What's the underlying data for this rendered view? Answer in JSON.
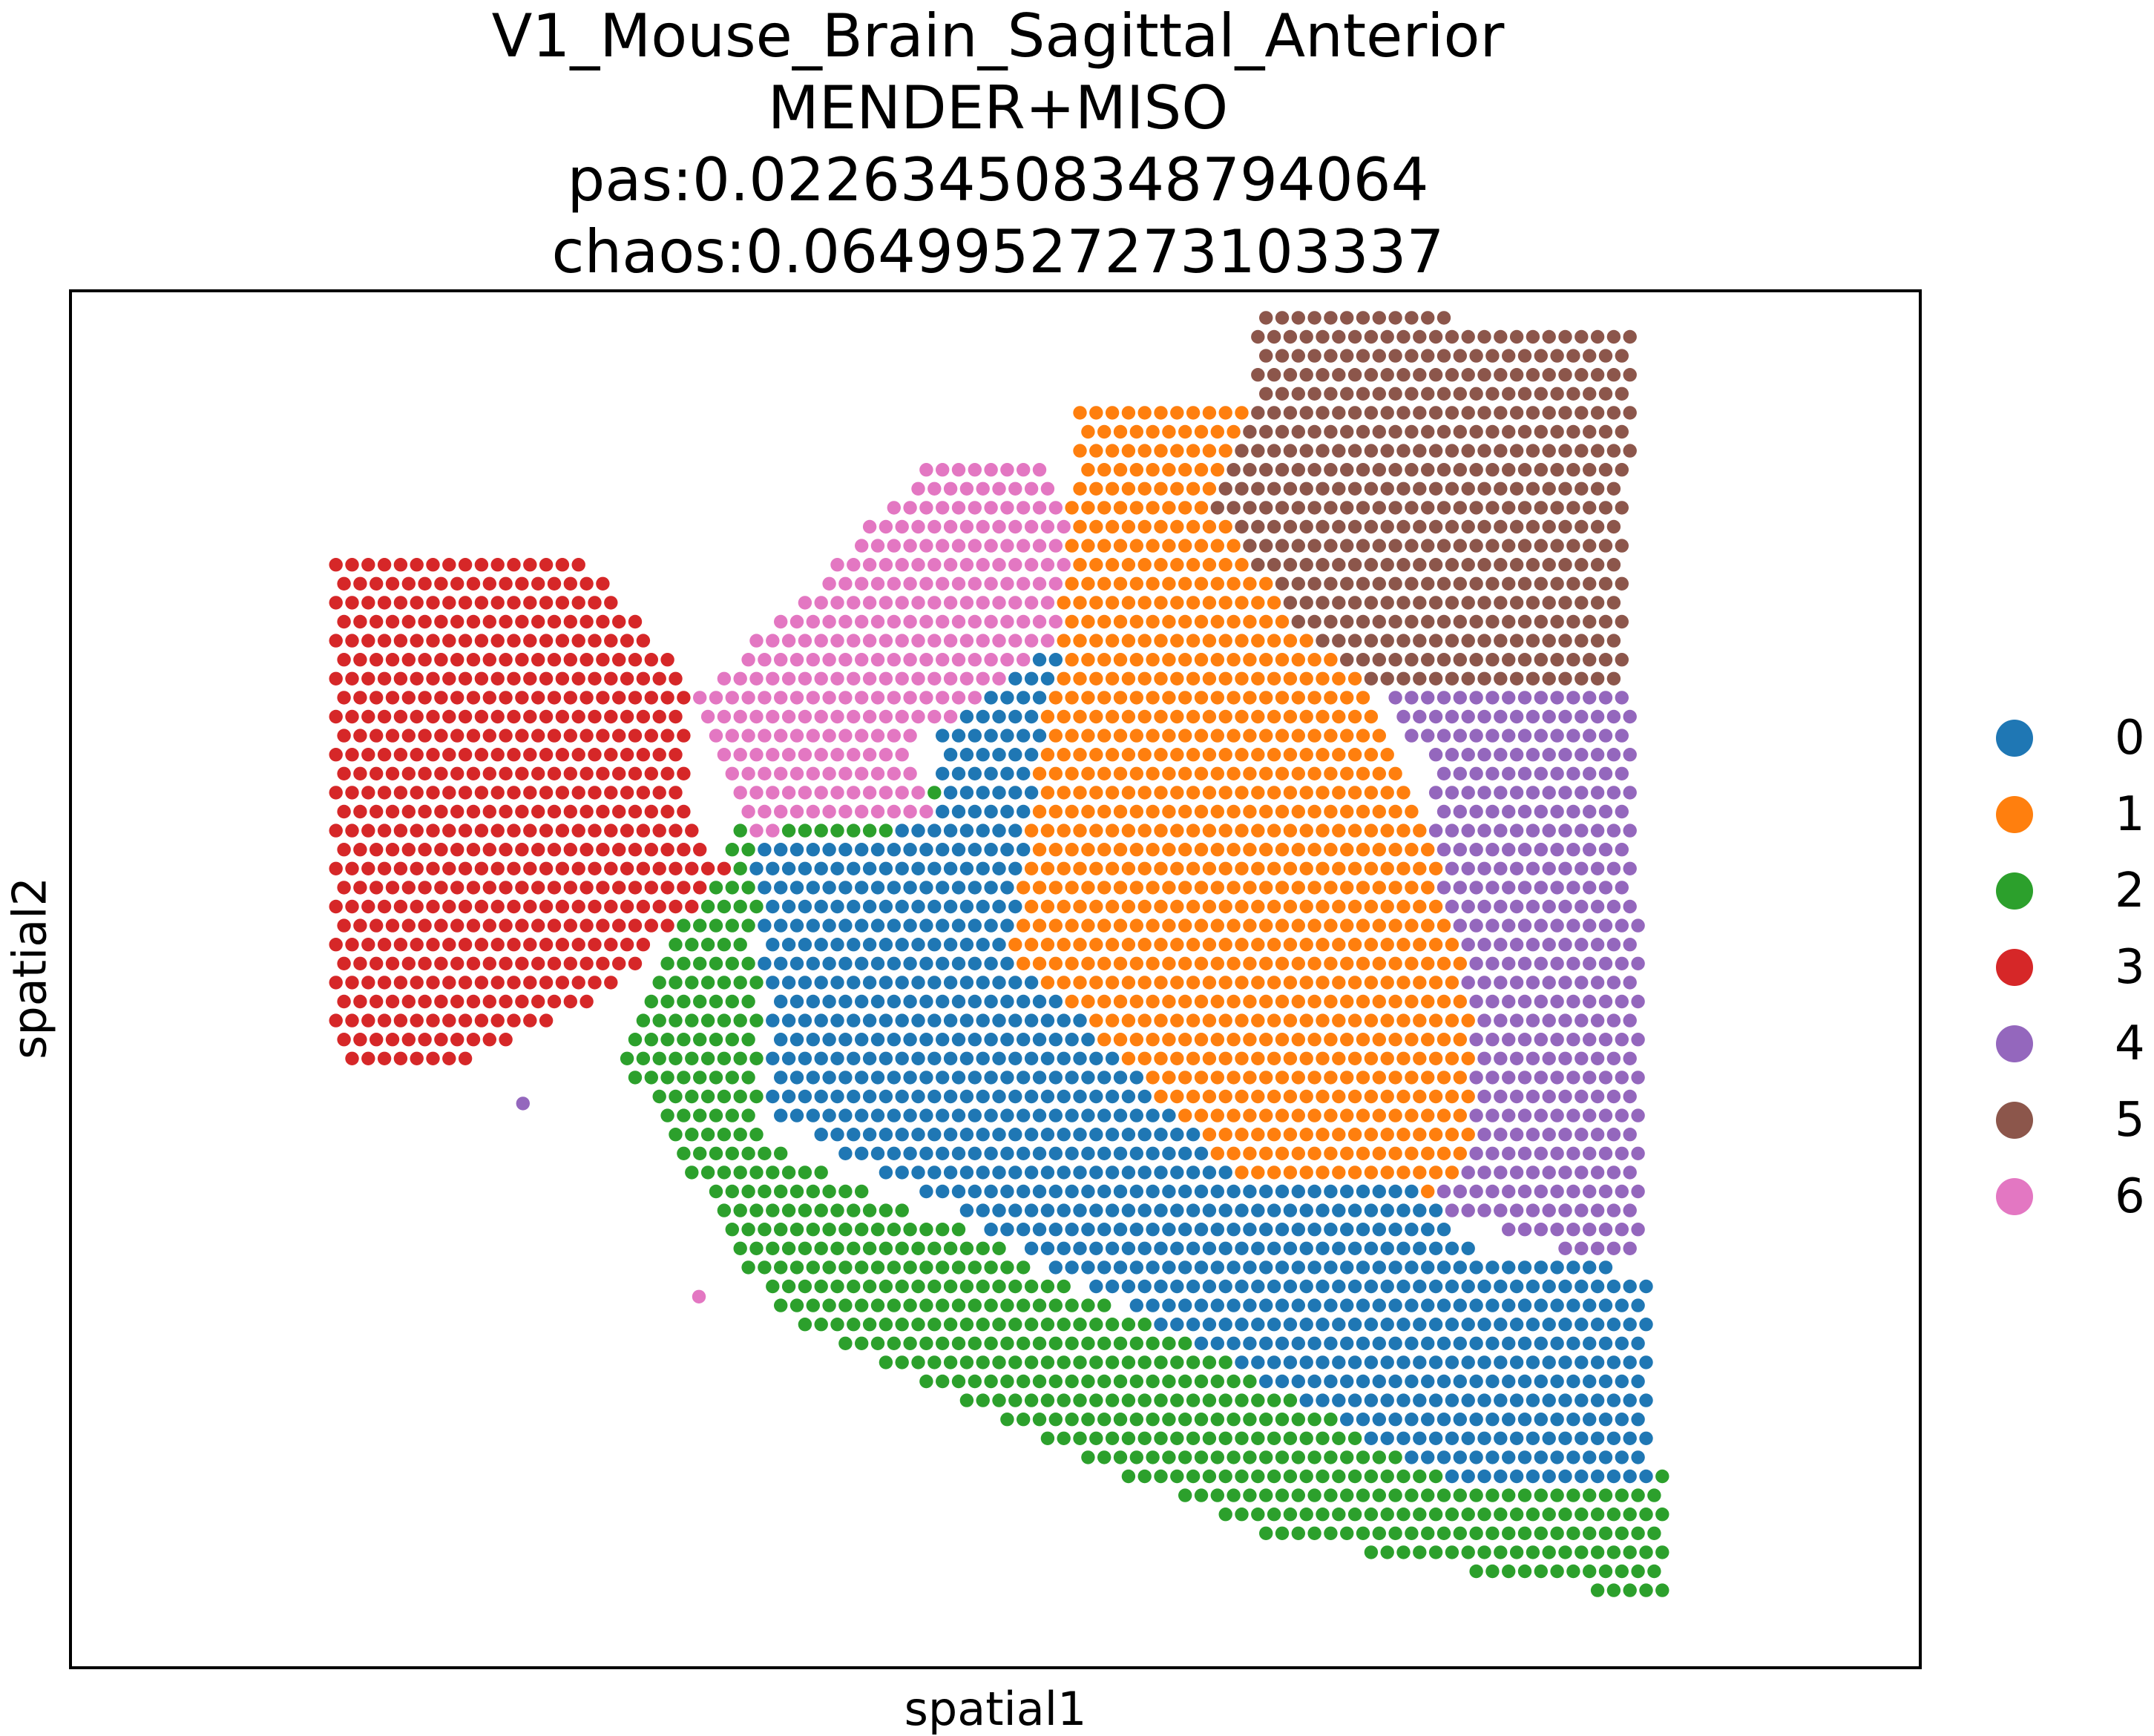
{
  "chart_data": {
    "type": "scatter",
    "title_lines": [
      "V1_Mouse_Brain_Sagittal_Anterior",
      "MENDER+MISO",
      "pas:0.022634508348794064",
      "chaos:0.06499527273103337"
    ],
    "xlabel": "spatial1",
    "ylabel": "spatial2",
    "grid": false,
    "legend_position": "right",
    "legend": [
      {
        "label": "0",
        "color": "#1f77b4"
      },
      {
        "label": "1",
        "color": "#ff7f0e"
      },
      {
        "label": "2",
        "color": "#2ca02c"
      },
      {
        "label": "3",
        "color": "#d62728"
      },
      {
        "label": "4",
        "color": "#9467bd"
      },
      {
        "label": "5",
        "color": "#8c564b"
      },
      {
        "label": "6",
        "color": "#e377c2"
      }
    ],
    "regions": [
      {
        "cluster": "5",
        "polygon": [
          [
            0.64,
            0.01
          ],
          [
            0.845,
            0.03
          ],
          [
            0.838,
            0.29
          ],
          [
            0.705,
            0.29
          ],
          [
            0.668,
            0.25
          ],
          [
            0.615,
            0.15
          ],
          [
            0.642,
            0.08
          ]
        ]
      },
      {
        "cluster": "1",
        "polygon": [
          [
            0.545,
            0.082
          ],
          [
            0.642,
            0.08
          ],
          [
            0.615,
            0.15
          ],
          [
            0.668,
            0.25
          ],
          [
            0.705,
            0.29
          ],
          [
            0.73,
            0.38
          ],
          [
            0.758,
            0.52
          ],
          [
            0.755,
            0.64
          ],
          [
            0.735,
            0.655
          ],
          [
            0.63,
            0.64
          ],
          [
            0.585,
            0.58
          ],
          [
            0.508,
            0.48
          ],
          [
            0.515,
            0.41
          ],
          [
            0.532,
            0.28
          ],
          [
            0.54,
            0.16
          ]
        ]
      },
      {
        "cluster": "6",
        "polygon": [
          [
            0.47,
            0.12
          ],
          [
            0.52,
            0.12
          ],
          [
            0.545,
            0.16
          ],
          [
            0.54,
            0.25
          ],
          [
            0.5,
            0.29
          ],
          [
            0.455,
            0.33
          ],
          [
            0.47,
            0.38
          ],
          [
            0.42,
            0.385
          ],
          [
            0.37,
            0.395
          ],
          [
            0.335,
            0.3
          ],
          [
            0.39,
            0.23
          ],
          [
            0.44,
            0.16
          ]
        ]
      },
      {
        "cluster": "3",
        "polygon": [
          [
            0.14,
            0.195
          ],
          [
            0.28,
            0.195
          ],
          [
            0.335,
            0.28
          ],
          [
            0.335,
            0.38
          ],
          [
            0.355,
            0.42
          ],
          [
            0.3,
            0.5
          ],
          [
            0.26,
            0.535
          ],
          [
            0.2,
            0.565
          ],
          [
            0.16,
            0.57
          ],
          [
            0.14,
            0.54
          ]
        ]
      },
      {
        "cluster": "0",
        "polygon": [
          [
            0.47,
            0.29
          ],
          [
            0.52,
            0.25
          ],
          [
            0.545,
            0.25
          ],
          [
            0.54,
            0.32
          ],
          [
            0.52,
            0.4
          ],
          [
            0.508,
            0.48
          ],
          [
            0.585,
            0.58
          ],
          [
            0.63,
            0.64
          ],
          [
            0.735,
            0.655
          ],
          [
            0.76,
            0.7
          ],
          [
            0.81,
            0.7
          ],
          [
            0.855,
            0.72
          ],
          [
            0.855,
            0.87
          ],
          [
            0.74,
            0.86
          ],
          [
            0.6,
            0.76
          ],
          [
            0.48,
            0.67
          ],
          [
            0.38,
            0.6
          ],
          [
            0.37,
            0.4
          ],
          [
            0.47,
            0.39
          ]
        ]
      },
      {
        "cluster": "2",
        "polygon": [
          [
            0.36,
            0.385
          ],
          [
            0.47,
            0.36
          ],
          [
            0.47,
            0.39
          ],
          [
            0.44,
            0.44
          ],
          [
            0.37,
            0.47
          ],
          [
            0.375,
            0.62
          ],
          [
            0.48,
            0.68
          ],
          [
            0.6,
            0.76
          ],
          [
            0.74,
            0.86
          ],
          [
            0.86,
            0.86
          ],
          [
            0.86,
            0.95
          ],
          [
            0.76,
            0.93
          ],
          [
            0.64,
            0.9
          ],
          [
            0.5,
            0.82
          ],
          [
            0.38,
            0.74
          ],
          [
            0.3,
            0.56
          ],
          [
            0.33,
            0.45
          ]
        ]
      },
      {
        "cluster": "4",
        "polygon": [
          [
            0.71,
            0.29
          ],
          [
            0.845,
            0.29
          ],
          [
            0.85,
            0.7
          ],
          [
            0.818,
            0.7
          ],
          [
            0.74,
            0.67
          ],
          [
            0.745,
            0.52
          ],
          [
            0.735,
            0.35
          ]
        ]
      }
    ],
    "extra_points": [
      {
        "cluster": "4",
        "x": 0.245,
        "y": 0.59
      },
      {
        "cluster": "6",
        "x": 0.34,
        "y": 0.73
      }
    ]
  }
}
